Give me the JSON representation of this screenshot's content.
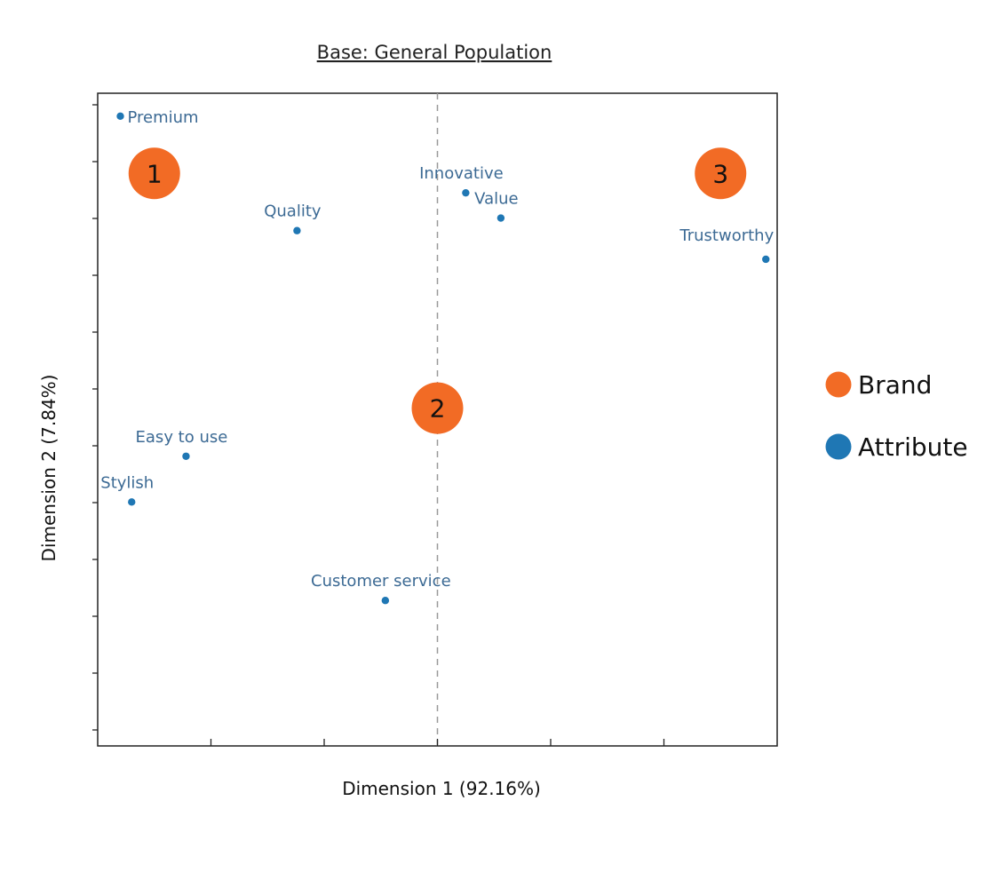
{
  "chart_data": {
    "type": "scatter",
    "title": "Base: General Population",
    "xlabel": "Dimension 1 (92.16%)",
    "ylabel": "Dimension 2  (7.84%)",
    "xlim": [
      -3,
      3
    ],
    "ylim": [
      -3,
      2.7
    ],
    "grid": false,
    "legend_position": "right",
    "series": [
      {
        "name": "Brand",
        "color": "#f26b25",
        "marker": "large-circle",
        "points": [
          {
            "label": "1",
            "x": -2.5,
            "y": 2.0
          },
          {
            "label": "2",
            "x": 0.0,
            "y": -0.05
          },
          {
            "label": "3",
            "x": 2.5,
            "y": 2.0
          }
        ]
      },
      {
        "name": "Attribute",
        "color": "#1f77b4",
        "marker": "small-dot",
        "points": [
          {
            "label": "Premium",
            "x": -2.8,
            "y": 2.5
          },
          {
            "label": "Quality",
            "x": -1.24,
            "y": 1.5
          },
          {
            "label": "Innovative",
            "x": 0.25,
            "y": 1.83
          },
          {
            "label": "Value",
            "x": 0.56,
            "y": 1.61
          },
          {
            "label": "Trustworthy",
            "x": 2.9,
            "y": 1.25
          },
          {
            "label": "Easy to use",
            "x": -2.22,
            "y": -0.47
          },
          {
            "label": "Stylish",
            "x": -2.7,
            "y": -0.87
          },
          {
            "label": "Customer service",
            "x": -0.46,
            "y": -1.73
          }
        ]
      }
    ],
    "reference_line": {
      "axis": "x",
      "value": 0,
      "style": "dashed"
    }
  }
}
